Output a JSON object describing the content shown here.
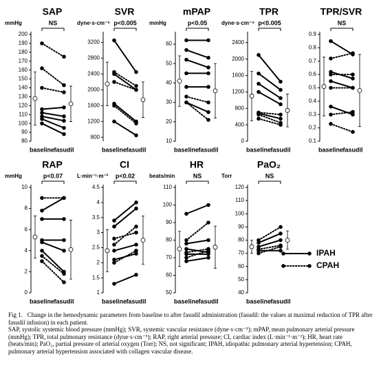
{
  "chart_data": [
    {
      "type": "paired",
      "title": "SAP",
      "unit": "mmHg",
      "sig": "NS",
      "categories": [
        "baseline",
        "fasudil"
      ],
      "ylim": [
        80,
        200
      ],
      "yticks": [
        80,
        90,
        100,
        110,
        120,
        130,
        140,
        150,
        160,
        170,
        180,
        190,
        200
      ],
      "mean": [
        128,
        122
      ],
      "sd": [
        30,
        20
      ],
      "series": [
        {
          "dashed": true,
          "values": [
            190,
            175
          ]
        },
        {
          "dashed": true,
          "values": [
            162,
            143
          ]
        },
        {
          "dashed": true,
          "values": [
            140,
            135
          ]
        },
        {
          "dashed": false,
          "values": [
            116,
            118
          ]
        },
        {
          "dashed": false,
          "values": [
            112,
            108
          ]
        },
        {
          "dashed": false,
          "values": [
            108,
            103
          ]
        },
        {
          "dashed": false,
          "values": [
            105,
            95
          ]
        },
        {
          "dashed": false,
          "values": [
            100,
            88
          ]
        }
      ]
    },
    {
      "type": "paired",
      "title": "SVR",
      "unit": "dyne·s·cm⁻⁵",
      "sig": "p<0.005",
      "categories": [
        "baseline",
        "fasudil"
      ],
      "ylim": [
        700,
        3400
      ],
      "yticks": [
        800,
        1200,
        1600,
        2000,
        2400,
        2800,
        3200
      ],
      "mean": [
        2150,
        1750
      ],
      "sd": [
        550,
        450
      ],
      "series": [
        {
          "dashed": false,
          "values": [
            3250,
            2450
          ]
        },
        {
          "dashed": true,
          "values": [
            2450,
            2100
          ]
        },
        {
          "dashed": false,
          "values": [
            2400,
            2000
          ]
        },
        {
          "dashed": true,
          "values": [
            2200,
            2000
          ]
        },
        {
          "dashed": false,
          "values": [
            1650,
            1200
          ]
        },
        {
          "dashed": true,
          "values": [
            1600,
            1150
          ]
        },
        {
          "dashed": false,
          "values": [
            1200,
            850
          ]
        }
      ]
    },
    {
      "type": "paired",
      "title": "mPAP",
      "unit": "mmHg",
      "sig": "p<0.05",
      "categories": [
        "baseline",
        "fasudil"
      ],
      "ylim": [
        10,
        65
      ],
      "yticks": [
        10,
        20,
        30,
        40,
        50,
        60
      ],
      "mean": [
        41,
        36
      ],
      "sd": [
        13,
        14
      ],
      "series": [
        {
          "dashed": false,
          "values": [
            62,
            62
          ]
        },
        {
          "dashed": false,
          "values": [
            57,
            53
          ]
        },
        {
          "dashed": false,
          "values": [
            52,
            48
          ]
        },
        {
          "dashed": false,
          "values": [
            45,
            45
          ]
        },
        {
          "dashed": false,
          "values": [
            38,
            38
          ]
        },
        {
          "dashed": true,
          "values": [
            33,
            30
          ]
        },
        {
          "dashed": true,
          "values": [
            30,
            21
          ]
        },
        {
          "dashed": false,
          "values": [
            30,
            25
          ]
        }
      ]
    },
    {
      "type": "paired",
      "title": "TPR",
      "unit": "dyne·s·cm⁻⁵",
      "sig": "p<0.005",
      "categories": [
        "baseline",
        "fasudil"
      ],
      "ylim": [
        0,
        2600
      ],
      "yticks": [
        0,
        400,
        800,
        1200,
        1600,
        2000,
        2400
      ],
      "mean": [
        1100,
        750
      ],
      "sd": [
        600,
        400
      ],
      "series": [
        {
          "dashed": false,
          "values": [
            2100,
            1450
          ]
        },
        {
          "dashed": false,
          "values": [
            1650,
            1250
          ]
        },
        {
          "dashed": false,
          "values": [
            1400,
            1050
          ]
        },
        {
          "dashed": false,
          "values": [
            1200,
            900
          ]
        },
        {
          "dashed": true,
          "values": [
            700,
            650
          ]
        },
        {
          "dashed": false,
          "values": [
            680,
            550
          ]
        },
        {
          "dashed": true,
          "values": [
            650,
            450
          ]
        },
        {
          "dashed": true,
          "values": [
            550,
            400
          ]
        }
      ]
    },
    {
      "type": "paired",
      "title": "TPR/SVR",
      "unit": null,
      "sig": "NS",
      "categories": [
        "baseline",
        "fasudil"
      ],
      "ylim": [
        0.1,
        0.9
      ],
      "yticks": [
        0.1,
        0.2,
        0.3,
        0.4,
        0.5,
        0.6,
        0.7,
        0.8,
        0.9
      ],
      "mean": [
        0.51,
        0.48
      ],
      "sd": [
        0.22,
        0.27
      ],
      "series": [
        {
          "dashed": false,
          "values": [
            0.85,
            0.75
          ]
        },
        {
          "dashed": true,
          "values": [
            0.72,
            0.76
          ]
        },
        {
          "dashed": false,
          "values": [
            0.62,
            0.57
          ]
        },
        {
          "dashed": true,
          "values": [
            0.6,
            0.6
          ]
        },
        {
          "dashed": false,
          "values": [
            0.55,
            0.5
          ]
        },
        {
          "dashed": true,
          "values": [
            0.5,
            0.5
          ]
        },
        {
          "dashed": false,
          "values": [
            0.36,
            0.3
          ]
        },
        {
          "dashed": true,
          "values": [
            0.3,
            0.32
          ]
        },
        {
          "dashed": true,
          "values": [
            0.23,
            0.17
          ]
        }
      ]
    },
    {
      "type": "paired",
      "title": "RAP",
      "unit": "mmHg",
      "sig": "p<0.07",
      "categories": [
        "baseline",
        "fasudil"
      ],
      "ylim": [
        0,
        10
      ],
      "yticks": [
        0,
        2,
        4,
        6,
        8,
        10
      ],
      "mean": [
        5.3,
        4.1
      ],
      "sd": [
        2,
        2.8
      ],
      "series": [
        {
          "dashed": true,
          "values": [
            9,
            9
          ]
        },
        {
          "dashed": false,
          "values": [
            7.8,
            9
          ]
        },
        {
          "dashed": false,
          "values": [
            7,
            7
          ]
        },
        {
          "dashed": false,
          "values": [
            5,
            5
          ]
        },
        {
          "dashed": false,
          "values": [
            4.8,
            4
          ]
        },
        {
          "dashed": false,
          "values": [
            4,
            2
          ]
        },
        {
          "dashed": true,
          "values": [
            3.5,
            1.8
          ]
        },
        {
          "dashed": true,
          "values": [
            3,
            1
          ]
        }
      ]
    },
    {
      "type": "paired",
      "title": "CI",
      "unit": "L·min⁻¹·m⁻²",
      "sig": "p<0.02",
      "categories": [
        "baseline",
        "fasudil"
      ],
      "ylim": [
        1,
        4.5
      ],
      "yticks": [
        1,
        1.5,
        2,
        2.5,
        3,
        3.5,
        4,
        4.5
      ],
      "mean": [
        2.4,
        2.75
      ],
      "sd": [
        0.7,
        0.8
      ],
      "series": [
        {
          "dashed": false,
          "values": [
            3.4,
            4
          ]
        },
        {
          "dashed": false,
          "values": [
            3.2,
            3.8
          ]
        },
        {
          "dashed": true,
          "values": [
            2.8,
            3
          ]
        },
        {
          "dashed": true,
          "values": [
            2.6,
            3.2
          ]
        },
        {
          "dashed": false,
          "values": [
            2.4,
            2.6
          ]
        },
        {
          "dashed": false,
          "values": [
            2.1,
            2.3
          ]
        },
        {
          "dashed": true,
          "values": [
            2,
            2.4
          ]
        },
        {
          "dashed": false,
          "values": [
            1.3,
            1.6
          ]
        }
      ]
    },
    {
      "type": "paired",
      "title": "HR",
      "unit": "beats/min",
      "sig": "NS",
      "categories": [
        "baseline",
        "fasudil"
      ],
      "ylim": [
        50,
        110
      ],
      "yticks": [
        50,
        60,
        70,
        80,
        90,
        100,
        110
      ],
      "mean": [
        75,
        76
      ],
      "sd": [
        10,
        12
      ],
      "series": [
        {
          "dashed": false,
          "values": [
            95,
            100
          ]
        },
        {
          "dashed": true,
          "values": [
            80,
            90
          ]
        },
        {
          "dashed": false,
          "values": [
            78,
            80
          ]
        },
        {
          "dashed": false,
          "values": [
            75,
            73
          ]
        },
        {
          "dashed": true,
          "values": [
            73,
            75
          ]
        },
        {
          "dashed": false,
          "values": [
            72,
            72
          ]
        },
        {
          "dashed": true,
          "values": [
            70,
            74
          ]
        },
        {
          "dashed": false,
          "values": [
            68,
            70
          ]
        }
      ]
    },
    {
      "type": "paired",
      "title": "PaO₂",
      "unit": "Torr",
      "sig": "NS",
      "categories": [
        "baseline",
        "fasudil"
      ],
      "ylim": [
        40,
        120
      ],
      "yticks": [
        40,
        50,
        60,
        70,
        80,
        90,
        100,
        110,
        120
      ],
      "mean": [
        75,
        80
      ],
      "sd": [
        5,
        7
      ],
      "series": [
        {
          "dashed": true,
          "values": [
            80,
            90
          ]
        },
        {
          "dashed": false,
          "values": [
            78,
            85
          ]
        },
        {
          "dashed": false,
          "values": [
            75,
            80
          ]
        },
        {
          "dashed": true,
          "values": [
            73,
            76
          ]
        },
        {
          "dashed": false,
          "values": [
            72,
            72
          ]
        },
        {
          "dashed": true,
          "values": [
            70,
            75
          ]
        }
      ]
    }
  ],
  "legend": [
    {
      "name": "IPAH",
      "dashed": false
    },
    {
      "name": "CPAH",
      "dashed": true
    }
  ],
  "caption": {
    "label": "Fig 1.",
    "text": "Change in the hemodynamic parameters from baseline to after fasudil administration (fasudil: the values at maximal reduction of TPR after fasudil infusion) in each patient.",
    "abbreviations": "SAP, systolic systemic blood pressure (mmHg); SVR, systemic vascular resistance (dyne·s·cm⁻⁵); mPAP, mean pulmonary arterial pressure (mmHg); TPR, total pulmonary resistance (dyne·s·cm⁻⁵); RAP, right arterial pressure; CI, cardiac index (L·min⁻¹·m⁻²); HR, heart rate (beats/min); PaO₂, partial pressure of arterial oxygen (Torr); NS, not significant; IPAH, idiopathic pulmonary arterial hypertension; CPAH, pulmonary arterial hypertension associated with collagen vascular disease."
  }
}
